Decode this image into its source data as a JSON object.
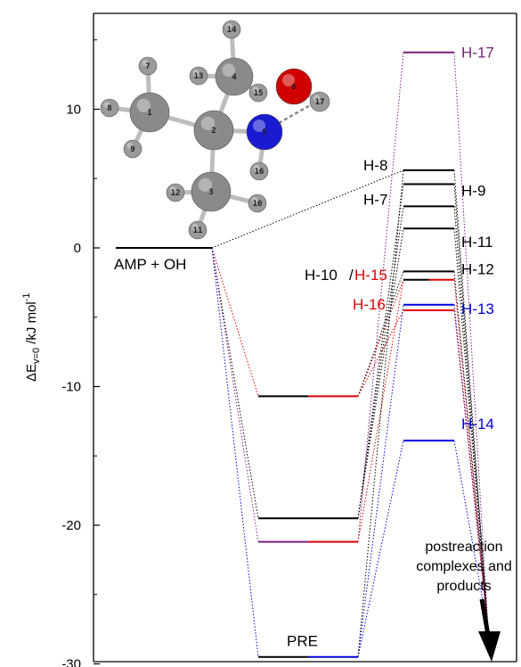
{
  "chart_data": {
    "type": "energy-level-diagram",
    "ylabel": "ΔE",
    "ylabel_sub": "v=0",
    "ylabel_unit": " /kJ mol",
    "ylabel_sup": "-1",
    "ylim": [
      -30,
      17
    ],
    "yticks": [
      10,
      0,
      -10,
      -20,
      -30
    ],
    "yticks_minor": [
      15,
      5,
      -5,
      -15,
      -25
    ],
    "columns": [
      "reactants",
      "PRE",
      "TS"
    ],
    "levels": [
      {
        "id": "reactant",
        "column": "reactants",
        "energy": 0.0,
        "segments": [
          "#000000"
        ]
      },
      {
        "id": "pre-a",
        "column": "PRE",
        "energy": -10.7,
        "segments": [
          "#000000",
          "#e00000"
        ]
      },
      {
        "id": "pre-b",
        "column": "PRE",
        "energy": -19.5,
        "segments": [
          "#000000"
        ]
      },
      {
        "id": "pre-c",
        "column": "PRE",
        "energy": -21.2,
        "segments": [
          "#7a1f7a",
          "#e00000"
        ]
      },
      {
        "id": "pre-d",
        "column": "PRE",
        "energy": -29.5,
        "segments": [
          "#000000",
          "#0000e0"
        ]
      },
      {
        "id": "ts-h17",
        "column": "TS",
        "energy": 14.1,
        "segments": [
          "#7a1f7a"
        ]
      },
      {
        "id": "ts-h8",
        "column": "TS",
        "energy": 5.6,
        "segments": [
          "#000000"
        ]
      },
      {
        "id": "ts-h9",
        "column": "TS",
        "energy": 4.6,
        "segments": [
          "#000000"
        ]
      },
      {
        "id": "ts-h7",
        "column": "TS",
        "energy": 3.0,
        "segments": [
          "#000000"
        ]
      },
      {
        "id": "ts-h11",
        "column": "TS",
        "energy": 1.4,
        "segments": [
          "#000000"
        ]
      },
      {
        "id": "ts-h12",
        "column": "TS",
        "energy": -1.7,
        "segments": [
          "#000000"
        ]
      },
      {
        "id": "ts-h15",
        "column": "TS",
        "energy": -2.3,
        "segments": [
          "#000000",
          "#e00000"
        ]
      },
      {
        "id": "ts-h13",
        "column": "TS",
        "energy": -4.1,
        "segments": [
          "#0000e0"
        ]
      },
      {
        "id": "ts-h16",
        "column": "TS",
        "energy": -4.5,
        "segments": [
          "#e00000"
        ]
      },
      {
        "id": "ts-h14",
        "column": "TS",
        "energy": -13.9,
        "segments": [
          "#0000e0"
        ]
      }
    ],
    "connectors": [
      {
        "from": "reactant",
        "to": "ts-h8",
        "color": "#000000"
      },
      {
        "from": "reactant",
        "to": "pre-a",
        "color": "#e00000"
      },
      {
        "from": "reactant",
        "to": "pre-b",
        "color": "#000000"
      },
      {
        "from": "reactant",
        "to": "pre-c",
        "color": "#7a1f7a"
      },
      {
        "from": "reactant",
        "to": "pre-d",
        "color": "#0000e0"
      },
      {
        "from": "pre-a",
        "to": "ts-h15",
        "color": "#e00000"
      },
      {
        "from": "pre-a",
        "to": "ts-h12",
        "color": "#000000"
      },
      {
        "from": "pre-a",
        "to": "ts-h16",
        "color": "#e00000"
      },
      {
        "from": "pre-b",
        "to": "ts-h9",
        "color": "#000000"
      },
      {
        "from": "pre-b",
        "to": "ts-h7",
        "color": "#000000"
      },
      {
        "from": "pre-b",
        "to": "ts-h11",
        "color": "#000000"
      },
      {
        "from": "pre-c",
        "to": "ts-h17",
        "color": "#7a1f7a"
      },
      {
        "from": "pre-c",
        "to": "ts-h15",
        "color": "#e00000"
      },
      {
        "from": "pre-d",
        "to": "ts-h13",
        "color": "#0000e0"
      },
      {
        "from": "pre-d",
        "to": "ts-h14",
        "color": "#0000e0"
      },
      {
        "from": "pre-d",
        "to": "ts-h8",
        "color": "#000000"
      }
    ],
    "labels": [
      {
        "text": "AMP + OH",
        "level": "reactant",
        "color": "#000000"
      },
      {
        "text": "PRE",
        "level": "pre-d",
        "color": "#000000"
      },
      {
        "text": "H-17",
        "level": "ts-h17",
        "color": "#7a1f7a"
      },
      {
        "text": "H-8",
        "level": "ts-h8",
        "color": "#000000"
      },
      {
        "text": "H-9",
        "level": "ts-h9",
        "color": "#000000"
      },
      {
        "text": "H-7",
        "level": "ts-h7",
        "color": "#000000"
      },
      {
        "text": "H-11",
        "level": "ts-h11",
        "color": "#000000"
      },
      {
        "text": "H-12",
        "level": "ts-h12",
        "color": "#000000"
      },
      {
        "text": "H-10",
        "level": "ts-h15",
        "color": "#000000"
      },
      {
        "text": "/",
        "level": "ts-h15",
        "color": "#000000"
      },
      {
        "text": "H-15",
        "level": "ts-h15",
        "color": "#e00000"
      },
      {
        "text": "H-16",
        "level": "ts-h16",
        "color": "#e00000"
      },
      {
        "text": "H-13",
        "level": "ts-h13",
        "color": "#0000e0"
      },
      {
        "text": "H-14",
        "level": "ts-h14",
        "color": "#0000e0"
      }
    ],
    "annotation_lines": [
      "postreaction",
      "complexes and",
      "products"
    ],
    "molecule_atom_numbers": [
      "1",
      "2",
      "3",
      "4",
      "5",
      "6",
      "7",
      "8",
      "9",
      "10",
      "11",
      "12",
      "13",
      "14",
      "15",
      "16",
      "17"
    ]
  }
}
